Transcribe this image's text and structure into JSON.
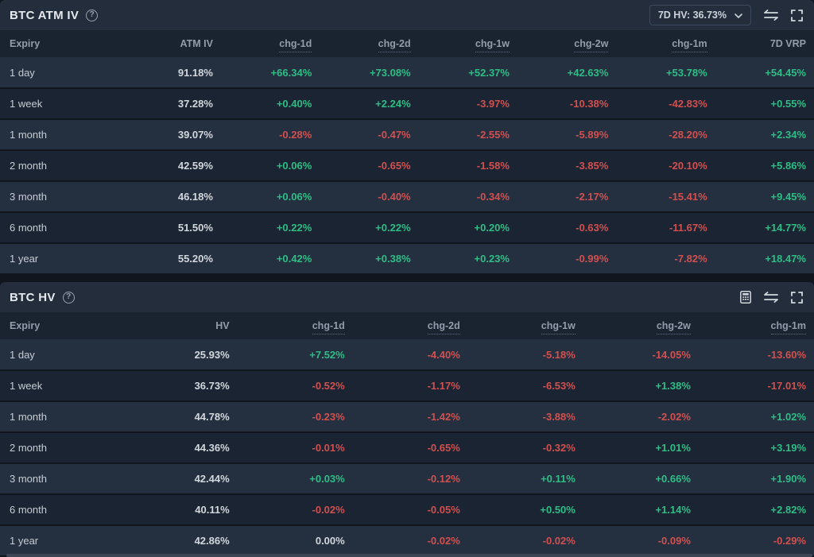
{
  "colors": {
    "positive": "#2ebd85",
    "negative": "#d1504f",
    "neutral_text": "#d2d7dd",
    "panel_header_bg": "#232d3b",
    "table_header_bg": "#1a2330",
    "row_light_bg": "#243040",
    "row_dark_bg": "#1b2432"
  },
  "panels": [
    {
      "title": "BTC ATM IV",
      "help_icon": "question-circle-icon",
      "toolbar": {
        "dropdown_label": "7D HV: 36.73%",
        "dropdown_icon": "chevron-down-icon",
        "icons": [
          "swap-icon",
          "fullscreen-icon"
        ]
      },
      "columns": [
        "Expiry",
        "ATM IV",
        "chg-1d",
        "chg-2d",
        "chg-1w",
        "chg-2w",
        "chg-1m",
        "7D VRP"
      ],
      "underlined_columns": [
        "chg-1d",
        "chg-2d",
        "chg-1w",
        "chg-2w",
        "chg-1m"
      ],
      "rows": [
        {
          "expiry": "1 day",
          "values": [
            "91.18%",
            "+66.34%",
            "+73.08%",
            "+52.37%",
            "+42.63%",
            "+53.78%",
            "+54.45%"
          ]
        },
        {
          "expiry": "1 week",
          "values": [
            "37.28%",
            "+0.40%",
            "+2.24%",
            "-3.97%",
            "-10.38%",
            "-42.83%",
            "+0.55%"
          ]
        },
        {
          "expiry": "1 month",
          "values": [
            "39.07%",
            "-0.28%",
            "-0.47%",
            "-2.55%",
            "-5.89%",
            "-28.20%",
            "+2.34%"
          ]
        },
        {
          "expiry": "2 month",
          "values": [
            "42.59%",
            "+0.06%",
            "-0.65%",
            "-1.58%",
            "-3.85%",
            "-20.10%",
            "+5.86%"
          ]
        },
        {
          "expiry": "3 month",
          "values": [
            "46.18%",
            "+0.06%",
            "-0.40%",
            "-0.34%",
            "-2.17%",
            "-15.41%",
            "+9.45%"
          ]
        },
        {
          "expiry": "6 month",
          "values": [
            "51.50%",
            "+0.22%",
            "+0.22%",
            "+0.20%",
            "-0.63%",
            "-11.67%",
            "+14.77%"
          ]
        },
        {
          "expiry": "1 year",
          "values": [
            "55.20%",
            "+0.42%",
            "+0.38%",
            "+0.23%",
            "-0.99%",
            "-7.82%",
            "+18.47%"
          ]
        }
      ]
    },
    {
      "title": "BTC HV",
      "help_icon": "question-circle-icon",
      "toolbar": {
        "icons": [
          "calculator-icon",
          "swap-icon",
          "fullscreen-icon"
        ]
      },
      "columns": [
        "Expiry",
        "HV",
        "chg-1d",
        "chg-2d",
        "chg-1w",
        "chg-2w",
        "chg-1m"
      ],
      "underlined_columns": [
        "chg-1d",
        "chg-2d",
        "chg-1w",
        "chg-2w",
        "chg-1m"
      ],
      "rows": [
        {
          "expiry": "1 day",
          "values": [
            "25.93%",
            "+7.52%",
            "-4.40%",
            "-5.18%",
            "-14.05%",
            "-13.60%"
          ]
        },
        {
          "expiry": "1 week",
          "values": [
            "36.73%",
            "-0.52%",
            "-1.17%",
            "-6.53%",
            "+1.38%",
            "-17.01%"
          ]
        },
        {
          "expiry": "1 month",
          "values": [
            "44.78%",
            "-0.23%",
            "-1.42%",
            "-3.88%",
            "-2.02%",
            "+1.02%"
          ]
        },
        {
          "expiry": "2 month",
          "values": [
            "44.36%",
            "-0.01%",
            "-0.65%",
            "-0.32%",
            "+1.01%",
            "+3.19%"
          ]
        },
        {
          "expiry": "3 month",
          "values": [
            "42.44%",
            "+0.03%",
            "-0.12%",
            "+0.11%",
            "+0.66%",
            "+1.90%"
          ]
        },
        {
          "expiry": "6 month",
          "values": [
            "40.11%",
            "-0.02%",
            "-0.05%",
            "+0.50%",
            "+1.14%",
            "+2.82%"
          ]
        },
        {
          "expiry": "1 year",
          "values": [
            "42.86%",
            "0.00%",
            "-0.02%",
            "-0.02%",
            "-0.09%",
            "-0.29%"
          ]
        }
      ]
    }
  ]
}
